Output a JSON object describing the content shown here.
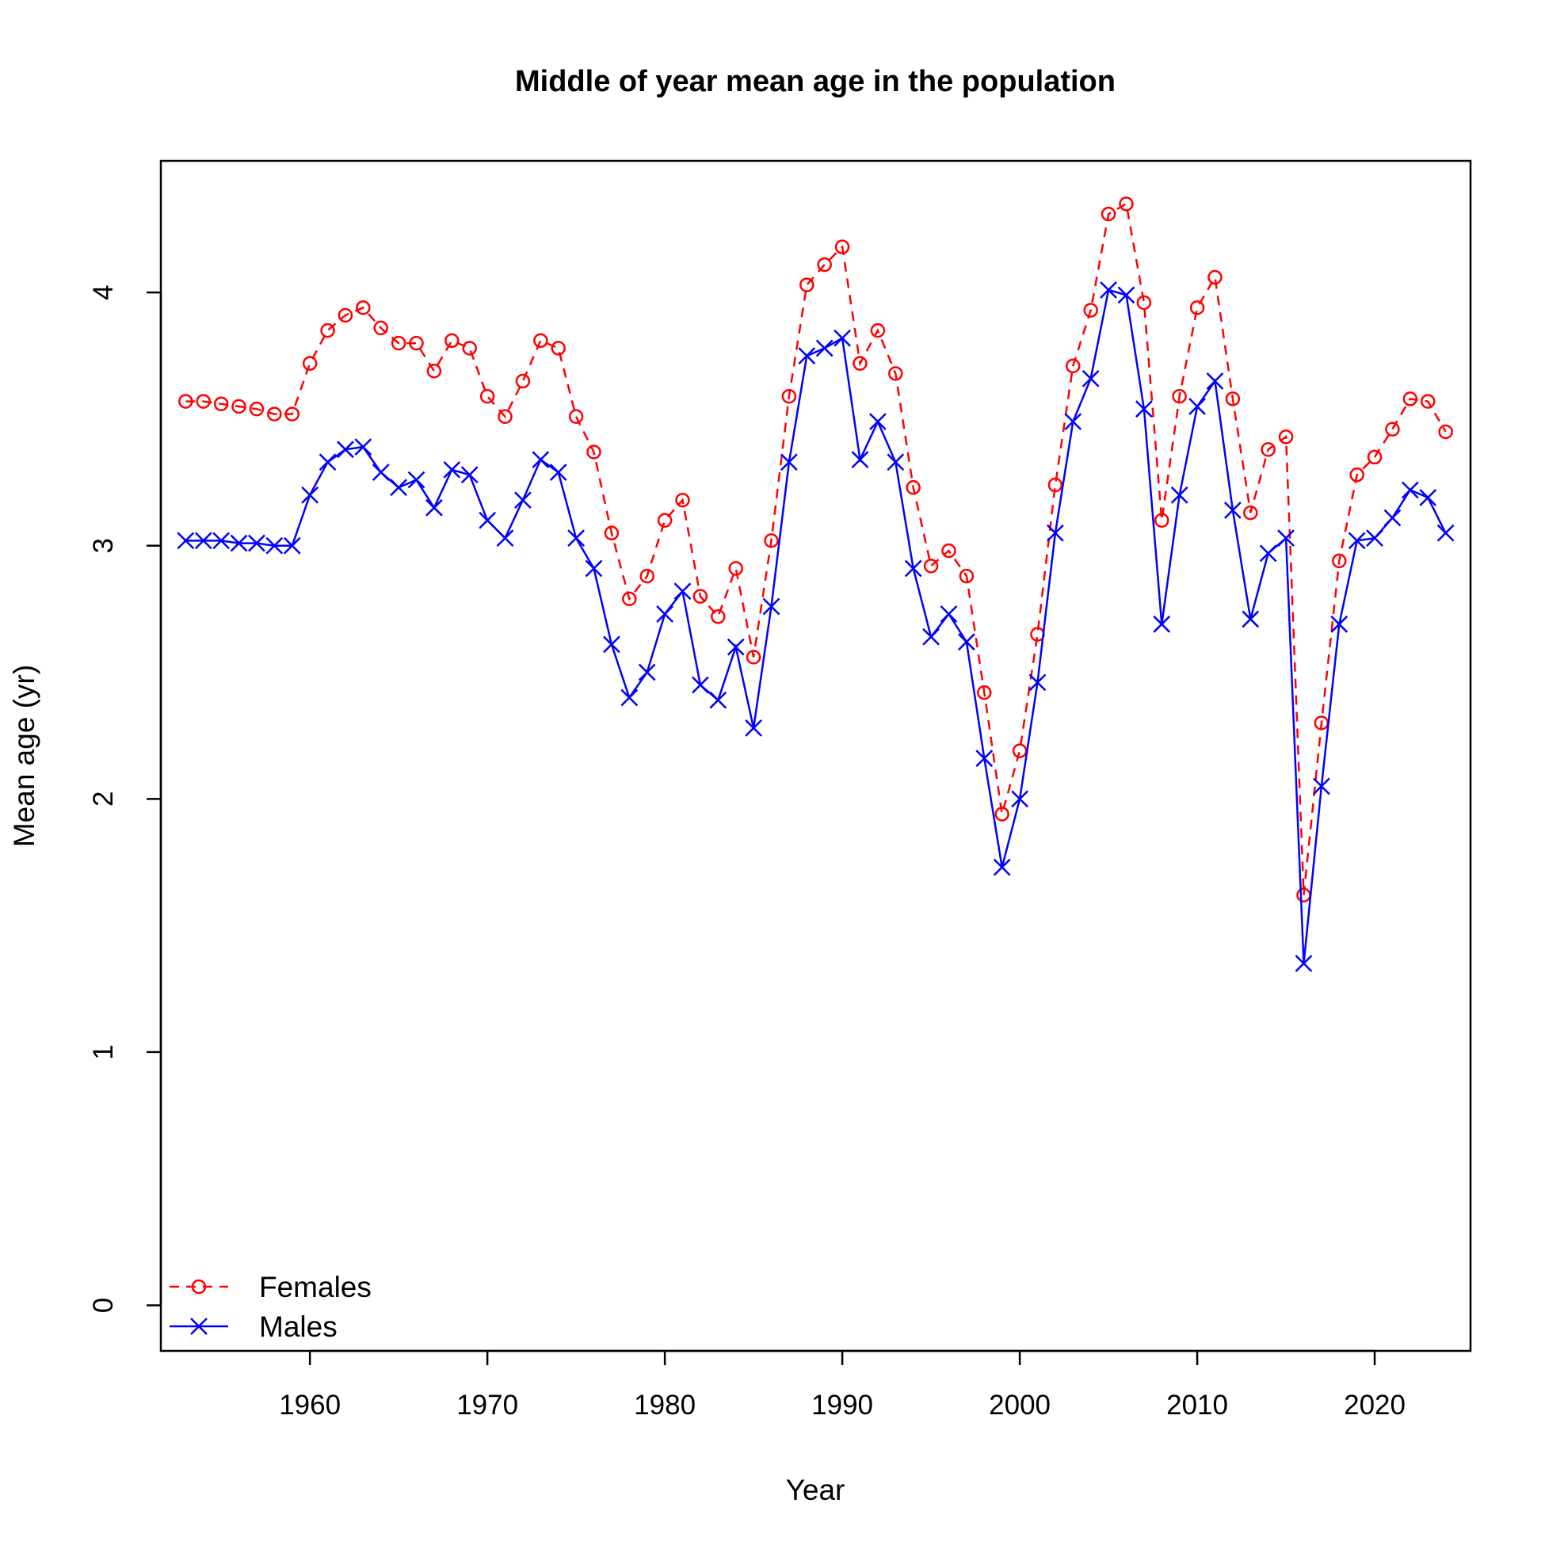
{
  "chart_data": {
    "type": "line",
    "title": "Middle of year mean age in the population",
    "xlabel": "Year",
    "ylabel": "Mean age (yr)",
    "xlim": [
      1951.6,
      2025.4
    ],
    "ylim": [
      -0.18,
      4.52
    ],
    "xticks": [
      1960,
      1970,
      1980,
      1990,
      2000,
      2010,
      2020
    ],
    "yticks": [
      0,
      1,
      2,
      3,
      4
    ],
    "grid": false,
    "legend_position": "bottom-left",
    "x": [
      1953,
      1954,
      1955,
      1956,
      1957,
      1958,
      1959,
      1960,
      1961,
      1962,
      1963,
      1964,
      1965,
      1966,
      1967,
      1968,
      1969,
      1970,
      1971,
      1972,
      1973,
      1974,
      1975,
      1976,
      1977,
      1978,
      1979,
      1980,
      1981,
      1982,
      1983,
      1984,
      1985,
      1986,
      1987,
      1988,
      1989,
      1990,
      1991,
      1992,
      1993,
      1994,
      1995,
      1996,
      1997,
      1998,
      1999,
      2000,
      2001,
      2002,
      2003,
      2004,
      2005,
      2006,
      2007,
      2008,
      2009,
      2010,
      2011,
      2012,
      2013,
      2014,
      2015,
      2016,
      2017,
      2018,
      2019,
      2020,
      2021,
      2022,
      2023,
      2024
    ],
    "series": [
      {
        "name": "Females",
        "color": "#ff0000",
        "line": "dashed",
        "marker": "circle",
        "values": [
          3.57,
          3.57,
          3.56,
          3.55,
          3.54,
          3.52,
          3.52,
          3.72,
          3.85,
          3.91,
          3.94,
          3.86,
          3.8,
          3.8,
          3.69,
          3.81,
          3.78,
          3.59,
          3.51,
          3.65,
          3.81,
          3.78,
          3.51,
          3.37,
          3.05,
          2.79,
          2.88,
          3.1,
          3.18,
          2.8,
          2.72,
          2.91,
          2.56,
          3.02,
          3.59,
          4.03,
          4.11,
          4.18,
          3.72,
          3.85,
          3.68,
          3.23,
          2.92,
          2.98,
          2.88,
          2.42,
          1.94,
          2.19,
          2.65,
          3.24,
          3.71,
          3.93,
          4.31,
          4.35,
          3.96,
          3.1,
          3.59,
          3.94,
          4.06,
          3.58,
          3.13,
          3.38,
          3.43,
          1.62,
          2.3,
          2.94,
          3.28,
          3.35,
          3.46,
          3.58,
          3.57,
          3.45
        ]
      },
      {
        "name": "Males",
        "color": "#0000ff",
        "line": "solid",
        "marker": "x",
        "values": [
          3.02,
          3.02,
          3.02,
          3.01,
          3.01,
          3.0,
          3.0,
          3.2,
          3.33,
          3.38,
          3.39,
          3.29,
          3.23,
          3.26,
          3.15,
          3.3,
          3.28,
          3.1,
          3.03,
          3.18,
          3.34,
          3.29,
          3.03,
          2.91,
          2.61,
          2.4,
          2.5,
          2.73,
          2.82,
          2.45,
          2.39,
          2.6,
          2.28,
          2.76,
          3.33,
          3.75,
          3.78,
          3.82,
          3.34,
          3.49,
          3.33,
          2.91,
          2.64,
          2.73,
          2.62,
          2.16,
          1.73,
          2.0,
          2.46,
          3.05,
          3.49,
          3.66,
          4.01,
          3.99,
          3.54,
          2.69,
          3.2,
          3.55,
          3.65,
          3.14,
          2.71,
          2.97,
          3.03,
          1.35,
          2.05,
          2.69,
          3.02,
          3.03,
          3.11,
          3.22,
          3.19,
          3.05
        ]
      }
    ]
  }
}
